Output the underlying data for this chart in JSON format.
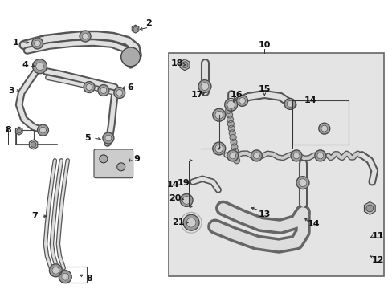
{
  "bg_color": "#ffffff",
  "box_bg": "#e0e0e0",
  "box_edge": "#666666",
  "lc": "#333333",
  "pipe_fill": "#d8d8d8",
  "pipe_edge": "#444444"
}
